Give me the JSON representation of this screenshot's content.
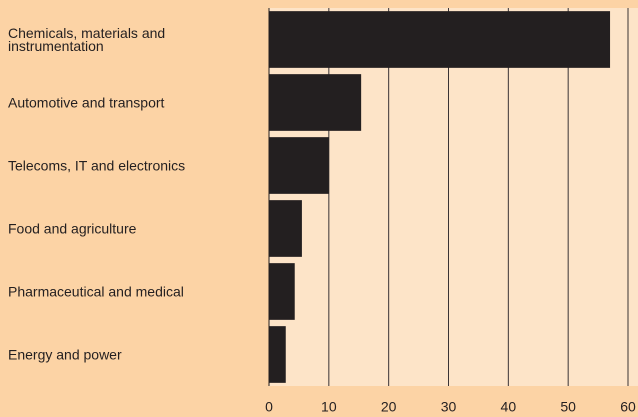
{
  "chart_data": {
    "type": "bar",
    "orientation": "horizontal",
    "categories": [
      "Chemicals, materials and instrumentation",
      "Automotive and transport",
      "Telecoms, IT and electronics",
      "Food and agriculture",
      "Pharmaceutical and medical",
      "Energy and power"
    ],
    "values": [
      57,
      15.4,
      10,
      5.5,
      4.3,
      2.8
    ],
    "color": "#231f20",
    "xlim": [
      0,
      60
    ],
    "xticks": [
      0,
      10,
      20,
      30,
      40,
      50,
      60
    ],
    "grid": true
  }
}
